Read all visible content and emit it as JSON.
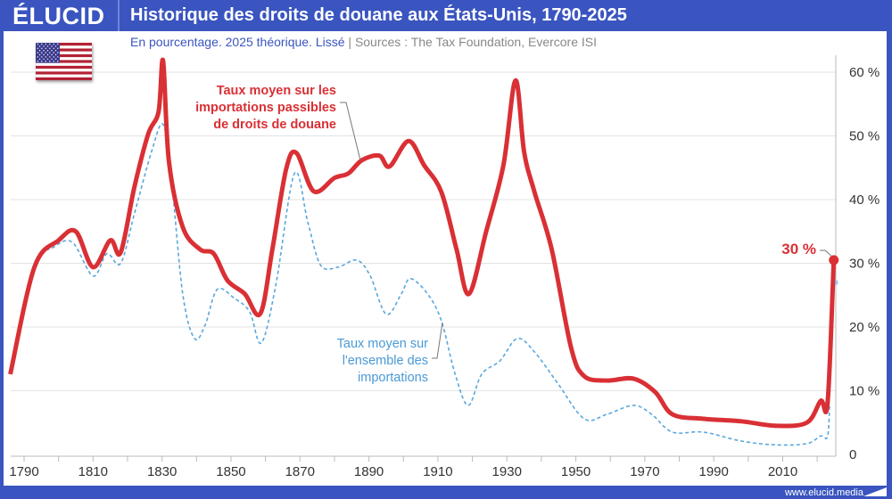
{
  "header": {
    "logo": "ÉLUCID",
    "title": "Historique des droits de douane aux États-Unis, 1790-2025"
  },
  "subtitle": {
    "text": "En pourcentage. 2025 théorique. Lissé",
    "separator": "|",
    "sources": "Sources : The Tax Foundation, Evercore ISI"
  },
  "footer": {
    "url": "www.elucid.media"
  },
  "flag_icon": "us-flag",
  "chart_data": {
    "type": "line",
    "xlim": [
      1786,
      2026
    ],
    "ylim": [
      0,
      62
    ],
    "grid": true,
    "x_ticks": [
      "1790",
      "1810",
      "1830",
      "1850",
      "1870",
      "1890",
      "1910",
      "1930",
      "1950",
      "1970",
      "1990",
      "2010"
    ],
    "y_ticks": [
      {
        "v": 0,
        "label": "0"
      },
      {
        "v": 10,
        "label": "10 %"
      },
      {
        "v": 20,
        "label": "20 %"
      },
      {
        "v": 30,
        "label": "30 %"
      },
      {
        "v": 40,
        "label": "40 %"
      },
      {
        "v": 50,
        "label": "50 %"
      },
      {
        "v": 60,
        "label": "60 %"
      }
    ],
    "series": [
      {
        "name": "Taux moyen sur les importations passibles de droits de douane",
        "label_lines": [
          "Taux moyen sur les",
          "importations passibles",
          "de droits de douane"
        ],
        "color": "#d93035",
        "style": "solid",
        "x": [
          1786,
          1793,
          1800,
          1805,
          1810,
          1815,
          1818,
          1822,
          1826,
          1829,
          1830.3,
          1832,
          1836,
          1841,
          1845,
          1849,
          1854,
          1858.5,
          1862,
          1866,
          1869,
          1874,
          1880,
          1884,
          1888,
          1893,
          1896,
          1901.5,
          1906,
          1911,
          1915.4,
          1919,
          1924,
          1929,
          1932.5,
          1935,
          1938,
          1943,
          1948.6,
          1952.4,
          1959,
          1966.7,
          1973,
          1978,
          1987,
          1998,
          2008,
          2017,
          2021,
          2023,
          2024.8
        ],
        "y": [
          12.6,
          29.4,
          33.6,
          35,
          29.4,
          33.6,
          31.7,
          42,
          50.3,
          53.8,
          61.8,
          46,
          35.7,
          32.2,
          31.5,
          27.3,
          25.2,
          22.1,
          32.2,
          44.8,
          47.3,
          41.3,
          43.4,
          44.1,
          46.2,
          46.9,
          45.2,
          49.2,
          45.4,
          41.2,
          32.2,
          25.2,
          35,
          45.4,
          58.7,
          47.5,
          41.2,
          32.2,
          16.8,
          12.3,
          11.6,
          11.9,
          9.8,
          6.3,
          5.6,
          5.2,
          4.5,
          5,
          8.4,
          8.1,
          30.5
        ],
        "end_label": "30 %"
      },
      {
        "name": "Taux moyen sur l'ensemble des importations",
        "label_lines": [
          "Taux moyen sur",
          "l'ensemble des",
          "importations"
        ],
        "color": "#5aa7dd",
        "style": "dashed",
        "x": [
          1786,
          1793,
          1798.5,
          1804,
          1810,
          1814,
          1818,
          1822,
          1827,
          1830.3,
          1832.7,
          1836,
          1839.4,
          1842.5,
          1846,
          1851,
          1855.4,
          1858.8,
          1863,
          1868.4,
          1872.3,
          1876,
          1881,
          1886.5,
          1890.4,
          1895,
          1899.4,
          1902,
          1907,
          1911,
          1915,
          1918.8,
          1922.7,
          1928,
          1933,
          1938,
          1944.7,
          1952.4,
          1959,
          1966.7,
          1972,
          1978,
          1987,
          1998,
          2008,
          2017,
          2021,
          2023,
          2023.6
        ],
        "y": [
          12.6,
          29.4,
          32.5,
          33.3,
          28,
          31.5,
          30,
          37.8,
          47.6,
          51.8,
          43.4,
          25.2,
          18.2,
          20.3,
          25.9,
          24.5,
          22.4,
          17.5,
          26.6,
          44.1,
          36.4,
          29.7,
          29.4,
          30.5,
          28,
          22,
          25.2,
          27.6,
          25.2,
          21,
          12.6,
          7.7,
          12.6,
          14.7,
          18.2,
          16.1,
          11.2,
          5.6,
          6.3,
          7.7,
          6.3,
          3.5,
          3.5,
          2.1,
          1.5,
          1.7,
          2.9,
          2.8,
          8
        ],
        "end_point": {
          "x": 2025.3,
          "y": 27
        }
      }
    ]
  }
}
